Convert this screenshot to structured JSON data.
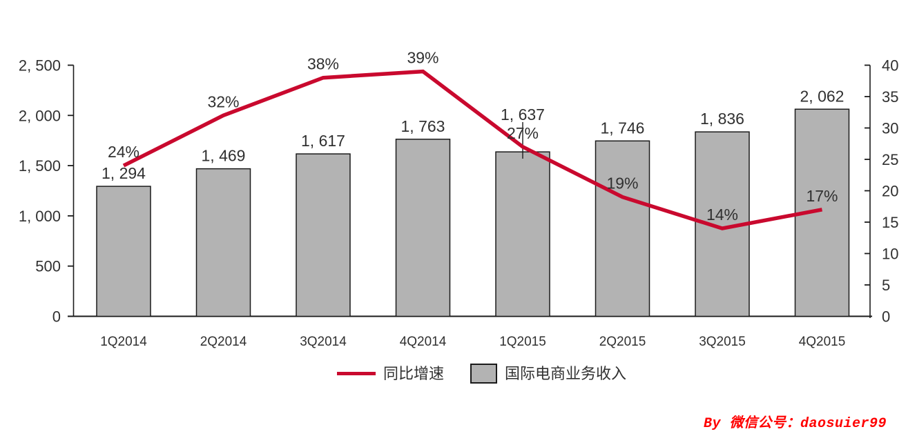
{
  "chart_data": {
    "type": "bar",
    "subtype": "bar-line-combo",
    "title": "",
    "categories": [
      "1Q2014",
      "2Q2014",
      "3Q2014",
      "4Q2014",
      "1Q2015",
      "2Q2015",
      "3Q2015",
      "4Q2015"
    ],
    "series": [
      {
        "name": "同比增速",
        "type": "line",
        "axis": "right",
        "unit": "%",
        "values": [
          24,
          32,
          38,
          39,
          27,
          19,
          14,
          17
        ],
        "labels": [
          "24%",
          "32%",
          "38%",
          "39%",
          "27%",
          "19%",
          "14%",
          "17%"
        ],
        "color": "#c9092e"
      },
      {
        "name": "国际电商业务收入",
        "type": "bar",
        "axis": "left",
        "values": [
          1294,
          1469,
          1617,
          1763,
          1637,
          1746,
          1836,
          2062
        ],
        "labels": [
          "1, 294",
          "1, 469",
          "1, 617",
          "1, 763",
          "1, 637",
          "1, 746",
          "1, 836",
          "2, 062"
        ],
        "fill": "#b3b3b3",
        "stroke": "#1a1a1a"
      }
    ],
    "left_axis": {
      "min": 0,
      "max": 2500,
      "step": 500,
      "tick_labels": [
        "0",
        "500",
        "1, 000",
        "1, 500",
        "2, 000",
        "2, 500"
      ]
    },
    "right_axis": {
      "min": 0,
      "max": 40,
      "step": 5,
      "tick_labels": [
        "0",
        "5",
        "10",
        "15",
        "20",
        "25",
        "30",
        "35",
        "40"
      ]
    },
    "legend": {
      "position": "bottom",
      "items": [
        "同比增速",
        "国际电商业务收入"
      ]
    },
    "gridlines": false,
    "colors": {
      "text": "#303030",
      "axis": "#1a1a1a"
    }
  },
  "watermark": {
    "text": "By 微信公号：daosuier99",
    "color": "#ff0000"
  }
}
